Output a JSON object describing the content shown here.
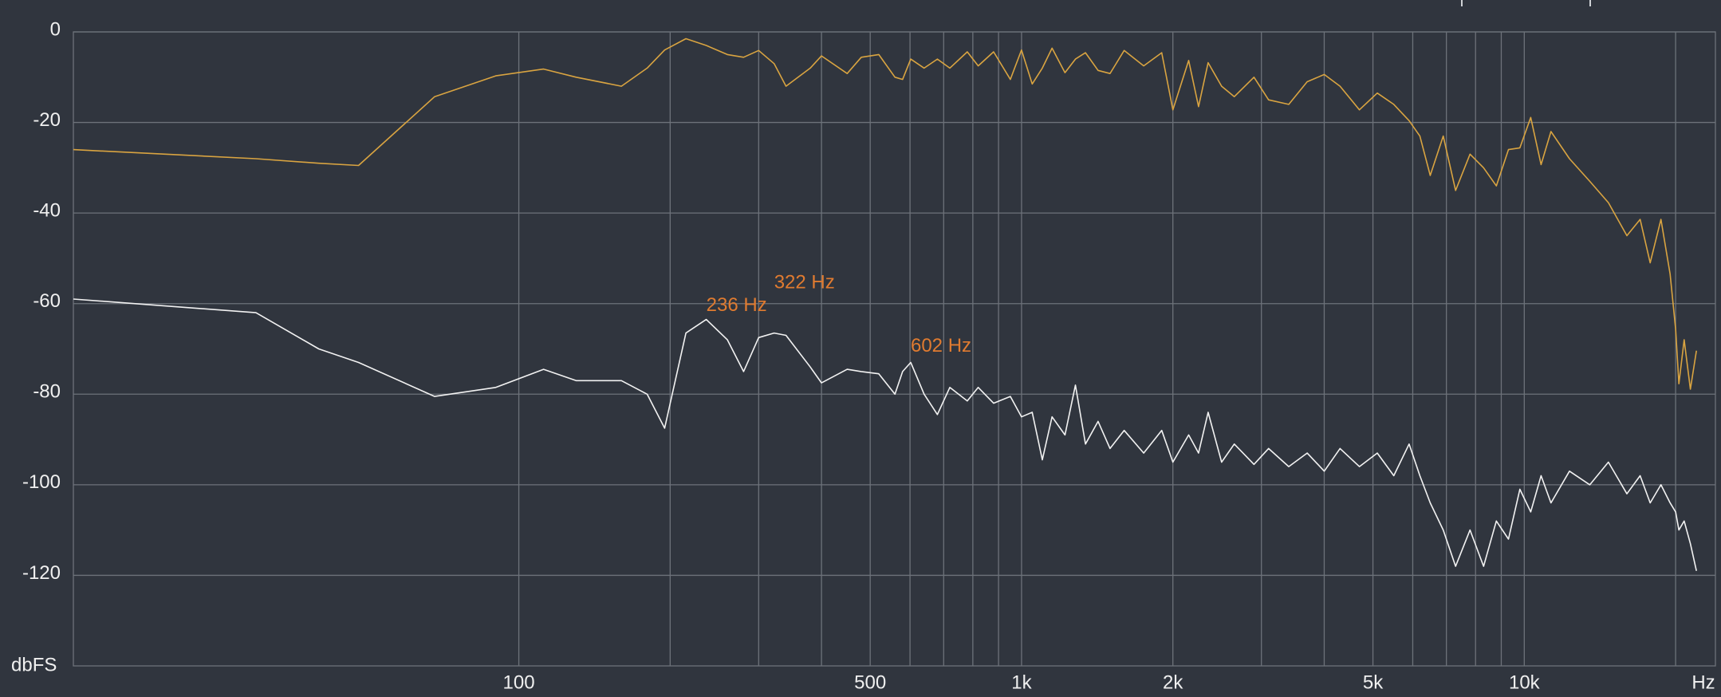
{
  "chart_data": {
    "type": "line",
    "x_label": "Hz",
    "y_label": "dbFS",
    "log_x": true,
    "grid": true,
    "xlim": [
      13,
      24000
    ],
    "ylim": [
      -140,
      0
    ],
    "xticks": [
      100,
      500,
      {
        "value": 1000,
        "label": "1k"
      },
      {
        "value": 2000,
        "label": "2k"
      },
      {
        "value": 5000,
        "label": "5k"
      },
      {
        "value": 10000,
        "label": "10k"
      }
    ],
    "minor_xgrid": [
      200,
      300,
      400,
      600,
      700,
      800,
      900,
      3000,
      4000,
      6000,
      7000,
      8000,
      9000,
      20000
    ],
    "yticks": [
      0,
      -20,
      -40,
      -60,
      -80,
      -100,
      -120
    ],
    "x": [
      13,
      30,
      40,
      48,
      68,
      90,
      112,
      130,
      160,
      180,
      195,
      215,
      236,
      260,
      280,
      300,
      322,
      340,
      380,
      400,
      450,
      480,
      520,
      560,
      580,
      602,
      640,
      680,
      720,
      780,
      820,
      880,
      950,
      1000,
      1050,
      1100,
      1150,
      1220,
      1280,
      1340,
      1420,
      1500,
      1600,
      1750,
      1900,
      2000,
      2150,
      2250,
      2350,
      2500,
      2650,
      2900,
      3100,
      3400,
      3700,
      4000,
      4300,
      4700,
      5100,
      5500,
      5900,
      6200,
      6500,
      6900,
      7300,
      7800,
      8300,
      8800,
      9300,
      9800,
      10300,
      10800,
      11300,
      12300,
      13500,
      14700,
      16000,
      17000,
      17800,
      18700,
      19500,
      20000,
      20300,
      20800,
      21400,
      22000
    ],
    "series": [
      {
        "color": "#d9a441",
        "values": [
          -26,
          -28,
          -29,
          -29.5,
          -14.3,
          -9.7,
          -8.2,
          -10,
          -12,
          -8,
          -4,
          -1.5,
          -3,
          -5,
          -5.6,
          -4.1,
          -7,
          -12,
          -8,
          -5.3,
          -9.2,
          -5.6,
          -5,
          -10,
          -10.5,
          -6,
          -8,
          -6,
          -8,
          -4.4,
          -7.5,
          -4.4,
          -10.5,
          -4,
          -11.5,
          -8,
          -3.6,
          -9,
          -6,
          -4.6,
          -8.5,
          -9.2,
          -4.1,
          -7.5,
          -4.6,
          -17.2,
          -6.3,
          -16.5,
          -6.8,
          -12,
          -14.3,
          -10,
          -15,
          -16,
          -11,
          -9.4,
          -12,
          -17.2,
          -13.5,
          -16,
          -19.6,
          -23,
          -31.7,
          -23,
          -35,
          -27,
          -30,
          -34,
          -26,
          -25.6,
          -18.9,
          -29.3,
          -22,
          -28,
          -33,
          -37.7,
          -45,
          -41.4,
          -51,
          -41.4,
          -53.5,
          -65.6,
          -77.7,
          -68,
          -78.9,
          -70.4
        ]
      },
      {
        "color": "#f2f2f2",
        "values": [
          -59,
          -62,
          -70,
          -73,
          -80.5,
          -78.5,
          -74.5,
          -77,
          -77,
          -80,
          -87.5,
          -66.5,
          -63.5,
          -68,
          -75,
          -67.5,
          -66.5,
          -67,
          -74,
          -77.5,
          -74.5,
          -75,
          -75.5,
          -80,
          -75,
          -73,
          -80,
          -84.5,
          -78.5,
          -81.5,
          -78.5,
          -82,
          -80.5,
          -85,
          -84,
          -94.5,
          -85,
          -89,
          -78,
          -91,
          -86,
          -92,
          -88,
          -93,
          -88,
          -95,
          -89,
          -93,
          -84,
          -95,
          -91,
          -95.5,
          -92,
          -96,
          -93,
          -97,
          -92,
          -96,
          -93,
          -98,
          -91,
          -98,
          -104,
          -110,
          -118,
          -110,
          -118,
          -108,
          -112,
          -101,
          -106,
          -98,
          -104,
          -97,
          -100,
          -95,
          -102,
          -98,
          -104,
          -100,
          -104,
          -106,
          -110,
          -108,
          -113,
          -119
        ]
      }
    ],
    "annotation_color": "#e07b30",
    "annotations": [
      {
        "text": "236 Hz",
        "x": 236,
        "y": -60.5
      },
      {
        "text": "322 Hz",
        "x": 322,
        "y": -55.5
      },
      {
        "text": "602 Hz",
        "x": 602,
        "y": -69.5
      }
    ]
  }
}
